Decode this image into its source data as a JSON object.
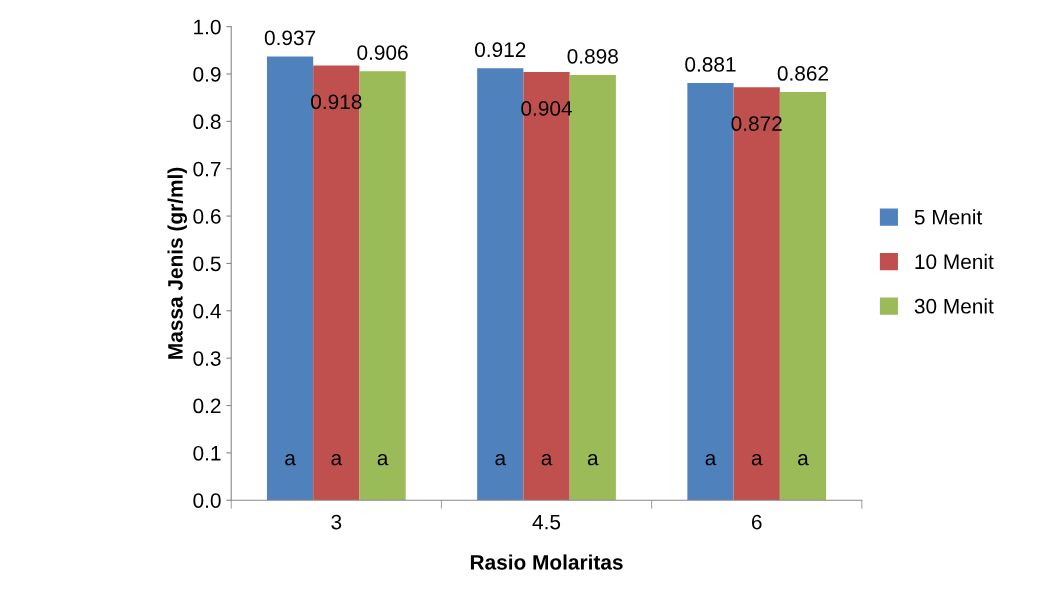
{
  "chart_data": {
    "type": "bar",
    "xlabel": "Rasio Molaritas",
    "ylabel": "Massa Jenis (gr/ml)",
    "categories": [
      "3",
      "4.5",
      "6"
    ],
    "series": [
      {
        "name": "5 Menit",
        "color": "#4f81bd",
        "values": [
          0.937,
          0.912,
          0.881
        ]
      },
      {
        "name": "10 Menit",
        "color": "#c0504d",
        "values": [
          0.918,
          0.904,
          0.872
        ]
      },
      {
        "name": "30 Menit",
        "color": "#9bbb59",
        "values": [
          0.906,
          0.898,
          0.862
        ]
      }
    ],
    "ylim": [
      0,
      1.0
    ],
    "yticks": [
      {
        "value": 0,
        "label": "0.0"
      },
      {
        "value": 0.1,
        "label": "0.1"
      },
      {
        "value": 0.2,
        "label": "0.2"
      },
      {
        "value": 0.3,
        "label": "0.3"
      },
      {
        "value": 0.4,
        "label": "0.4"
      },
      {
        "value": 0.5,
        "label": "0.5"
      },
      {
        "value": 0.6,
        "label": "0.6"
      },
      {
        "value": 0.7,
        "label": "0.7"
      },
      {
        "value": 0.8,
        "label": "0.8"
      },
      {
        "value": 0.9,
        "label": "0.9"
      },
      {
        "value": 1.0,
        "label": "1.0"
      }
    ],
    "data_labels": true,
    "legend": "right",
    "grid": false,
    "annotations": [
      "a",
      "a",
      "a",
      "a",
      "a",
      "a",
      "a",
      "a",
      "a"
    ]
  }
}
